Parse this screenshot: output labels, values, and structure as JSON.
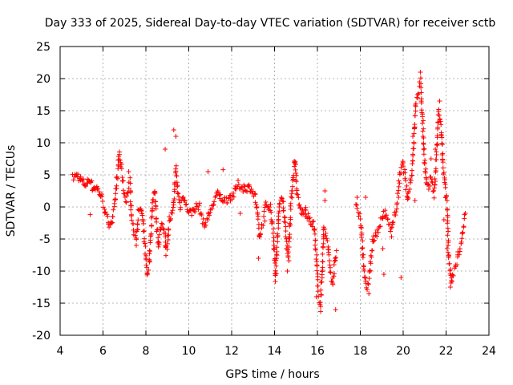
{
  "chart_data": {
    "type": "scatter",
    "title": "Day 333 of 2025, Sidereal Day-to-day VTEC variation (SDTVAR) for receiver sctb",
    "xlabel": "GPS time / hours",
    "ylabel": "SDTVAR / TECUs",
    "xlim": [
      4,
      24
    ],
    "ylim": [
      -20,
      25
    ],
    "xticks": [
      "4",
      "6",
      "8",
      "10",
      "12",
      "14",
      "16",
      "18",
      "20",
      "22",
      "24"
    ],
    "yticks": [
      "-20",
      "-15",
      "-10",
      "-5",
      "0",
      "5",
      "10",
      "15",
      "20",
      "25"
    ],
    "grid": true,
    "marker": "plus",
    "series_color": "#ff0000",
    "track": [
      [
        4.6,
        4.5
      ],
      [
        4.8,
        5.0
      ],
      [
        5.0,
        4.0
      ],
      [
        5.2,
        3.5
      ],
      [
        5.4,
        4.5
      ],
      [
        5.5,
        3.0
      ],
      [
        5.7,
        3.0
      ],
      [
        5.8,
        2.5
      ],
      [
        6.0,
        1.0
      ],
      [
        6.1,
        -1.0
      ],
      [
        6.2,
        -2.0
      ],
      [
        6.3,
        -2.5
      ],
      [
        6.45,
        -2.0
      ],
      [
        6.55,
        0
      ],
      [
        6.65,
        4.0
      ],
      [
        6.75,
        8.5
      ],
      [
        6.85,
        6.0
      ],
      [
        6.95,
        3.0
      ],
      [
        7.05,
        1.0
      ],
      [
        7.15,
        2.0
      ],
      [
        7.25,
        4.0
      ],
      [
        7.35,
        -2.0
      ],
      [
        7.45,
        -4.0
      ],
      [
        7.55,
        -5.5
      ],
      [
        7.65,
        -1.0
      ],
      [
        7.8,
        -0.5
      ],
      [
        7.95,
        -6.0
      ],
      [
        8.05,
        -10.5
      ],
      [
        8.15,
        -9.0
      ],
      [
        8.25,
        -3.0
      ],
      [
        8.3,
        0
      ],
      [
        8.4,
        3.0
      ],
      [
        8.5,
        -3.0
      ],
      [
        8.6,
        -6.0
      ],
      [
        8.7,
        -3.0
      ],
      [
        8.9,
        -4.0
      ],
      [
        8.95,
        -7.0
      ],
      [
        9.1,
        -2.0
      ],
      [
        9.25,
        -1.0
      ],
      [
        9.4,
        6.0
      ],
      [
        9.5,
        2.0
      ],
      [
        9.6,
        0
      ],
      [
        9.75,
        2.0
      ],
      [
        9.9,
        0
      ],
      [
        10.1,
        -1.0
      ],
      [
        10.3,
        0
      ],
      [
        10.5,
        0
      ],
      [
        10.7,
        -3.0
      ],
      [
        11.1,
        0
      ],
      [
        11.3,
        2.0
      ],
      [
        11.5,
        1.5
      ],
      [
        11.7,
        1.0
      ],
      [
        11.9,
        1.5
      ],
      [
        12.1,
        2.0
      ],
      [
        12.3,
        3.5
      ],
      [
        12.5,
        3.0
      ],
      [
        12.7,
        3.0
      ],
      [
        12.9,
        3.0
      ],
      [
        13.1,
        1.5
      ],
      [
        13.2,
        -1.0
      ],
      [
        13.3,
        -5.0
      ],
      [
        13.6,
        0.5
      ],
      [
        13.8,
        0
      ],
      [
        13.95,
        -4.0
      ],
      [
        14.05,
        -11.0
      ],
      [
        14.15,
        -4.0
      ],
      [
        14.25,
        1.0
      ],
      [
        14.4,
        1.0
      ],
      [
        14.55,
        -5.0
      ],
      [
        14.65,
        -8.0
      ],
      [
        14.75,
        0
      ],
      [
        14.85,
        4.0
      ],
      [
        14.95,
        7.5
      ],
      [
        15.05,
        2.0
      ],
      [
        15.15,
        0
      ],
      [
        15.3,
        -1.0
      ],
      [
        15.45,
        -0.5
      ],
      [
        15.6,
        -2.0
      ],
      [
        15.85,
        -3.0
      ],
      [
        15.95,
        -8.0
      ],
      [
        16.05,
        -14.0
      ],
      [
        16.15,
        -15.0
      ],
      [
        16.3,
        -3.0
      ],
      [
        16.5,
        -6.0
      ],
      [
        16.6,
        -10.0
      ],
      [
        16.7,
        -12.0
      ],
      [
        16.8,
        -9.0
      ],
      [
        16.9,
        -6.5
      ],
      [
        17.8,
        0
      ],
      [
        18.0,
        -2.0
      ],
      [
        18.1,
        -6.0
      ],
      [
        18.2,
        -11.0
      ],
      [
        18.3,
        -13.0
      ],
      [
        18.4,
        -11.0
      ],
      [
        18.5,
        -8.0
      ],
      [
        18.6,
        -5.0
      ],
      [
        18.7,
        -5.0
      ],
      [
        18.8,
        -3.5
      ],
      [
        18.9,
        -3.0
      ],
      [
        19.1,
        -1.0
      ],
      [
        19.3,
        -2.0
      ],
      [
        19.45,
        -4.0
      ],
      [
        19.55,
        -2.0
      ],
      [
        19.65,
        -1.0
      ],
      [
        19.75,
        1.5
      ],
      [
        19.85,
        5.0
      ],
      [
        20.0,
        7.0
      ],
      [
        20.2,
        1.0
      ],
      [
        20.4,
        5.0
      ],
      [
        20.5,
        10.0
      ],
      [
        20.6,
        16.5
      ],
      [
        20.7,
        17.5
      ],
      [
        20.8,
        19.5
      ],
      [
        20.9,
        14.0
      ],
      [
        21.0,
        7.0
      ],
      [
        21.1,
        3.0
      ],
      [
        21.2,
        3.0
      ],
      [
        21.3,
        5.0
      ],
      [
        21.45,
        2.0
      ],
      [
        21.55,
        8.0
      ],
      [
        21.65,
        15.0
      ],
      [
        21.75,
        13.0
      ],
      [
        21.85,
        7.0
      ],
      [
        21.95,
        3.0
      ],
      [
        22.05,
        0
      ],
      [
        22.1,
        -6.0
      ],
      [
        22.15,
        -9.0
      ],
      [
        22.25,
        -12.0
      ],
      [
        22.7,
        -6.0
      ],
      [
        22.8,
        -3.0
      ],
      [
        22.9,
        -1.0
      ]
    ],
    "outliers": [
      [
        5.4,
        -1.2
      ],
      [
        7.2,
        5.5
      ],
      [
        8.9,
        9.0
      ],
      [
        9.3,
        12.0
      ],
      [
        9.4,
        11.0
      ],
      [
        10.9,
        5.5
      ],
      [
        11.6,
        5.8
      ],
      [
        12.4,
        -1.0
      ],
      [
        13.25,
        -8.0
      ],
      [
        13.55,
        -2.2
      ],
      [
        14.55,
        -6.5
      ],
      [
        14.6,
        -10.0
      ],
      [
        15.45,
        -1.5
      ],
      [
        15.95,
        -14.0
      ],
      [
        16.15,
        -16.3
      ],
      [
        16.35,
        2.5
      ],
      [
        16.35,
        1.0
      ],
      [
        16.85,
        -16.0
      ],
      [
        17.85,
        1.5
      ],
      [
        18.25,
        1.5
      ],
      [
        18.4,
        -13.5
      ],
      [
        19.05,
        -6.5
      ],
      [
        19.1,
        -10.5
      ],
      [
        19.9,
        -11.0
      ],
      [
        20.45,
        11.0
      ],
      [
        20.55,
        1.0
      ],
      [
        20.8,
        21.0
      ],
      [
        21.3,
        7.5
      ],
      [
        21.5,
        9.0
      ],
      [
        21.7,
        16.5
      ],
      [
        21.9,
        -2.0
      ],
      [
        22.05,
        -6.5
      ],
      [
        22.2,
        -12.5
      ],
      [
        22.25,
        -11.5
      ],
      [
        22.55,
        -7.0
      ]
    ]
  }
}
